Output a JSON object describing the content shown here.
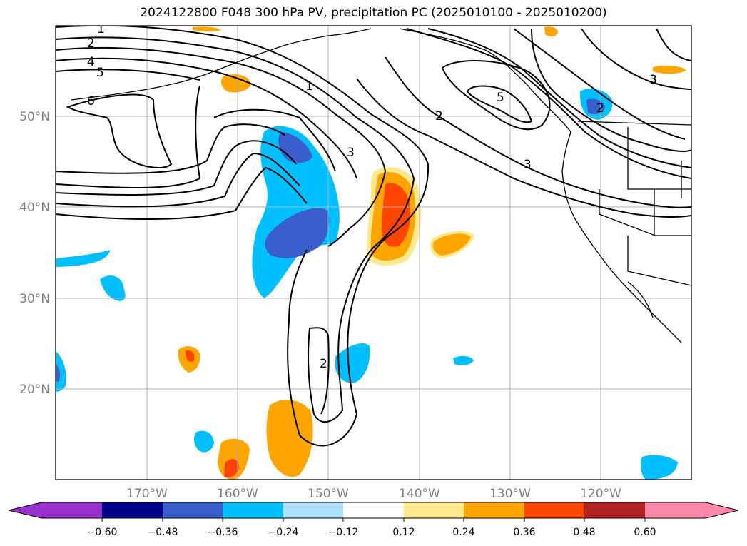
{
  "title": "2024122800 F048 300 hPa PV, precipitation PC (2025010100 - 2025010200)",
  "map": {
    "lat_labels": [
      "50°N",
      "40°N",
      "30°N",
      "20°N"
    ],
    "lon_labels": [
      "170°W",
      "160°W",
      "150°W",
      "140°W",
      "130°W",
      "120°W"
    ],
    "gridlines": true
  },
  "colorbar": {
    "ticks": [
      "−0.60",
      "−0.48",
      "−0.36",
      "−0.24",
      "−0.12",
      "0.12",
      "0.24",
      "0.36",
      "0.48",
      "0.60"
    ],
    "colors": [
      "#9932CC",
      "#00008B",
      "#3A5FCD",
      "#00BFFF",
      "#ADDFFF",
      "#FFFFFF",
      "#FFE98C",
      "#FFA500",
      "#FF4500",
      "#B22222",
      "#FF88AA"
    ]
  },
  "contour_labels": [
    "1",
    "2",
    "4",
    "5",
    "6",
    "1",
    "3",
    "2",
    "5",
    "3",
    "3",
    "2",
    "2"
  ]
}
